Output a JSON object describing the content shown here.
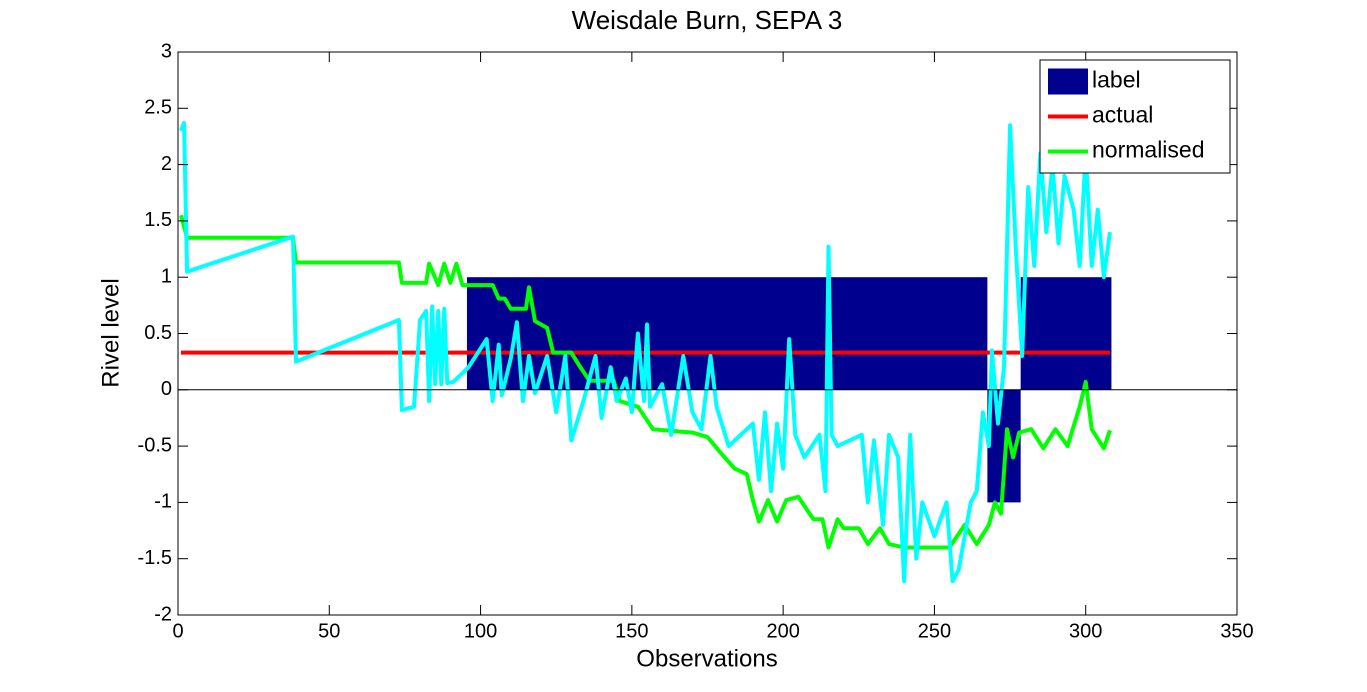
{
  "chart_data": {
    "type": "line",
    "title": "Weisdale Burn, SEPA 3",
    "xlabel": "Observations",
    "ylabel": "Rivel level",
    "xlim": [
      0,
      350
    ],
    "xticks": [
      0,
      50,
      100,
      150,
      200,
      250,
      300,
      350
    ],
    "ylim": [
      -2,
      3
    ],
    "yticks": [
      -2,
      -1.5,
      -1,
      -0.5,
      0,
      0.5,
      1,
      1.5,
      2,
      2.5,
      3
    ],
    "legend": "northeast",
    "series": [
      {
        "name": "label",
        "type": "bar",
        "color": "#00008f",
        "bins": [
          95.5,
          267.5,
          278.5,
          308.5
        ],
        "values": [
          1,
          -1,
          1
        ]
      },
      {
        "name": "actual",
        "color": "#ff0000",
        "x": [
          1,
          308
        ],
        "values": [
          0.33,
          0.33
        ]
      },
      {
        "name": "normalised",
        "color": "#00ff00",
        "x": [
          1,
          3,
          38,
          39,
          73,
          74,
          82,
          83,
          86,
          88,
          90,
          92,
          94,
          104,
          106,
          108,
          110,
          115,
          116,
          118,
          122,
          124,
          130,
          133,
          136,
          144,
          146,
          152,
          157,
          170,
          175,
          180,
          184,
          188,
          190,
          192,
          195,
          198,
          201,
          205,
          210,
          213,
          215,
          218,
          220,
          225,
          228,
          232,
          235,
          240,
          255,
          260,
          264,
          268,
          270,
          272,
          274,
          276,
          278,
          282,
          286,
          290,
          294,
          298,
          300,
          302,
          306,
          308
        ],
        "values": [
          1.55,
          1.35,
          1.35,
          1.13,
          1.13,
          0.95,
          0.95,
          1.12,
          0.93,
          1.12,
          0.95,
          1.12,
          0.93,
          0.93,
          0.81,
          0.81,
          0.72,
          0.72,
          0.91,
          0.61,
          0.55,
          0.33,
          0.33,
          0.2,
          0.08,
          0.08,
          -0.1,
          -0.15,
          -0.35,
          -0.38,
          -0.42,
          -0.58,
          -0.7,
          -0.75,
          -0.98,
          -1.17,
          -0.98,
          -1.17,
          -0.98,
          -0.95,
          -1.15,
          -1.15,
          -1.4,
          -1.15,
          -1.23,
          -1.23,
          -1.37,
          -1.23,
          -1.37,
          -1.4,
          -1.4,
          -1.2,
          -1.37,
          -1.2,
          -1.0,
          -1.1,
          -0.35,
          -0.6,
          -0.38,
          -0.35,
          -0.52,
          -0.35,
          -0.5,
          -0.15,
          0.07,
          -0.35,
          -0.52,
          -0.36
        ]
      },
      {
        "color": "#00ffff",
        "x": [
          1,
          2,
          3,
          38,
          39,
          73,
          74,
          78,
          80,
          82,
          83,
          84,
          85,
          86,
          87,
          88,
          89,
          91,
          96,
          102,
          104,
          106,
          107,
          110,
          112,
          114,
          116,
          118,
          122,
          125,
          128,
          130,
          134,
          138,
          140,
          143,
          145,
          148,
          150,
          152,
          154,
          155,
          156,
          160,
          163,
          167,
          170,
          173,
          176,
          178,
          182,
          190,
          192,
          194,
          196,
          198,
          200,
          202,
          204,
          207,
          212,
          214,
          215,
          216,
          218,
          226,
          228,
          230,
          233,
          235,
          238,
          240,
          242,
          244,
          246,
          250,
          254,
          256,
          258,
          262,
          264,
          266,
          268,
          269,
          271,
          273,
          275,
          277,
          279,
          281,
          283,
          285,
          287,
          289,
          291,
          293,
          296,
          298,
          300,
          302,
          304,
          306,
          308
        ],
        "values": [
          2.3,
          2.37,
          1.05,
          1.36,
          0.25,
          0.62,
          -0.18,
          -0.15,
          0.62,
          0.7,
          -0.1,
          0.74,
          0.05,
          0.7,
          0.05,
          0.72,
          0.06,
          0.07,
          0.2,
          0.45,
          -0.1,
          0.4,
          -0.05,
          0.28,
          0.6,
          -0.1,
          0.3,
          -0.03,
          0.3,
          -0.2,
          0.3,
          -0.45,
          -0.1,
          0.3,
          -0.25,
          0.2,
          -0.1,
          0.1,
          -0.2,
          0.5,
          -0.1,
          0.58,
          -0.15,
          0.05,
          -0.4,
          0.3,
          -0.2,
          -0.35,
          0.3,
          -0.15,
          -0.5,
          -0.3,
          -0.8,
          -0.2,
          -0.9,
          -0.3,
          -0.7,
          0.45,
          -0.4,
          -0.6,
          -0.4,
          -0.9,
          1.27,
          -0.4,
          -0.5,
          -0.4,
          -1.0,
          -0.45,
          -1.2,
          -0.4,
          -0.6,
          -1.7,
          -0.4,
          -1.5,
          -1.0,
          -1.3,
          -1.0,
          -1.7,
          -1.6,
          -1.0,
          -0.9,
          -0.2,
          -0.5,
          0.35,
          -0.3,
          0.2,
          2.35,
          1.2,
          0.3,
          1.8,
          1.1,
          2.1,
          1.4,
          2.0,
          1.3,
          1.9,
          1.6,
          1.1,
          2.1,
          1.1,
          1.6,
          1.0,
          1.4
        ]
      }
    ]
  }
}
